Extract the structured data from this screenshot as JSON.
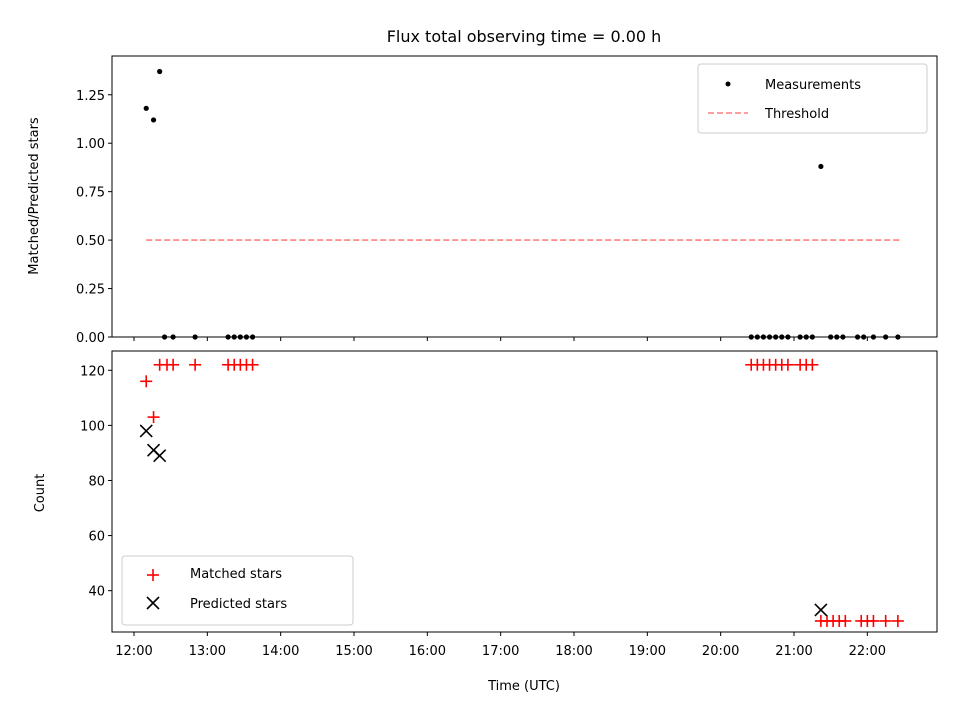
{
  "chart_data": [
    {
      "type": "scatter",
      "title": "Flux total observing time = 0.00 h",
      "xlabel": "",
      "ylabel": "Matched/Predicted stars",
      "xlim": [
        "11:42",
        "22:57"
      ],
      "ylim": [
        0,
        1.45
      ],
      "yticks": [
        "0.00",
        "0.25",
        "0.50",
        "0.75",
        "1.00",
        "1.25"
      ],
      "legend_position": "upper right",
      "series": [
        {
          "name": "Measurements",
          "marker": "dot",
          "color": "#000000",
          "points": [
            [
              "12:10",
              1.18
            ],
            [
              "12:16",
              1.12
            ],
            [
              "12:21",
              1.37
            ],
            [
              "12:25",
              0.0
            ],
            [
              "12:32",
              0.0
            ],
            [
              "12:50",
              0.0
            ],
            [
              "13:17",
              0.0
            ],
            [
              "13:22",
              0.0
            ],
            [
              "13:27",
              0.0
            ],
            [
              "13:32",
              0.0
            ],
            [
              "13:37",
              0.0
            ],
            [
              "20:25",
              0.0
            ],
            [
              "20:30",
              0.0
            ],
            [
              "20:35",
              0.0
            ],
            [
              "20:40",
              0.0
            ],
            [
              "20:45",
              0.0
            ],
            [
              "20:50",
              0.0
            ],
            [
              "20:55",
              0.0
            ],
            [
              "21:05",
              0.0
            ],
            [
              "21:10",
              0.0
            ],
            [
              "21:15",
              0.0
            ],
            [
              "21:22",
              0.88
            ],
            [
              "21:30",
              0.0
            ],
            [
              "21:35",
              0.0
            ],
            [
              "21:40",
              0.0
            ],
            [
              "21:52",
              0.0
            ],
            [
              "21:57",
              0.0
            ],
            [
              "22:05",
              0.0
            ],
            [
              "22:15",
              0.0
            ],
            [
              "22:25",
              0.0
            ]
          ]
        },
        {
          "name": "Threshold",
          "marker": "dashed-line",
          "color": "#ff7f7f",
          "points": [
            [
              "12:10",
              0.5
            ],
            [
              "22:27",
              0.5
            ]
          ]
        }
      ]
    },
    {
      "type": "scatter",
      "title": "",
      "xlabel": "Time (UTC)",
      "ylabel": "Count",
      "xlim": [
        "11:42",
        "22:57"
      ],
      "ylim": [
        25,
        127
      ],
      "yticks": [
        "40",
        "60",
        "80",
        "100",
        "120"
      ],
      "xticks": [
        "12:00",
        "13:00",
        "14:00",
        "15:00",
        "16:00",
        "17:00",
        "18:00",
        "19:00",
        "20:00",
        "21:00",
        "22:00"
      ],
      "legend_position": "lower left",
      "series": [
        {
          "name": "Matched stars",
          "marker": "plus",
          "color": "#ff0000",
          "points": [
            [
              "12:10",
              116
            ],
            [
              "12:16",
              103
            ],
            [
              "12:21",
              122
            ],
            [
              "12:27",
              122
            ],
            [
              "12:32",
              122
            ],
            [
              "12:50",
              122
            ],
            [
              "13:17",
              122
            ],
            [
              "13:22",
              122
            ],
            [
              "13:27",
              122
            ],
            [
              "13:32",
              122
            ],
            [
              "13:37",
              122
            ],
            [
              "20:25",
              122
            ],
            [
              "20:30",
              122
            ],
            [
              "20:35",
              122
            ],
            [
              "20:40",
              122
            ],
            [
              "20:45",
              122
            ],
            [
              "20:50",
              122
            ],
            [
              "20:55",
              122
            ],
            [
              "21:05",
              122
            ],
            [
              "21:10",
              122
            ],
            [
              "21:15",
              122
            ],
            [
              "21:22",
              29
            ],
            [
              "21:27",
              29
            ],
            [
              "21:32",
              29
            ],
            [
              "21:37",
              29
            ],
            [
              "21:42",
              29
            ],
            [
              "21:55",
              29
            ],
            [
              "22:00",
              29
            ],
            [
              "22:05",
              29
            ],
            [
              "22:15",
              29
            ],
            [
              "22:25",
              29
            ]
          ]
        },
        {
          "name": "Predicted stars",
          "marker": "x",
          "color": "#000000",
          "points": [
            [
              "12:10",
              98
            ],
            [
              "12:16",
              91
            ],
            [
              "12:21",
              89
            ],
            [
              "21:22",
              33
            ]
          ]
        }
      ]
    }
  ]
}
